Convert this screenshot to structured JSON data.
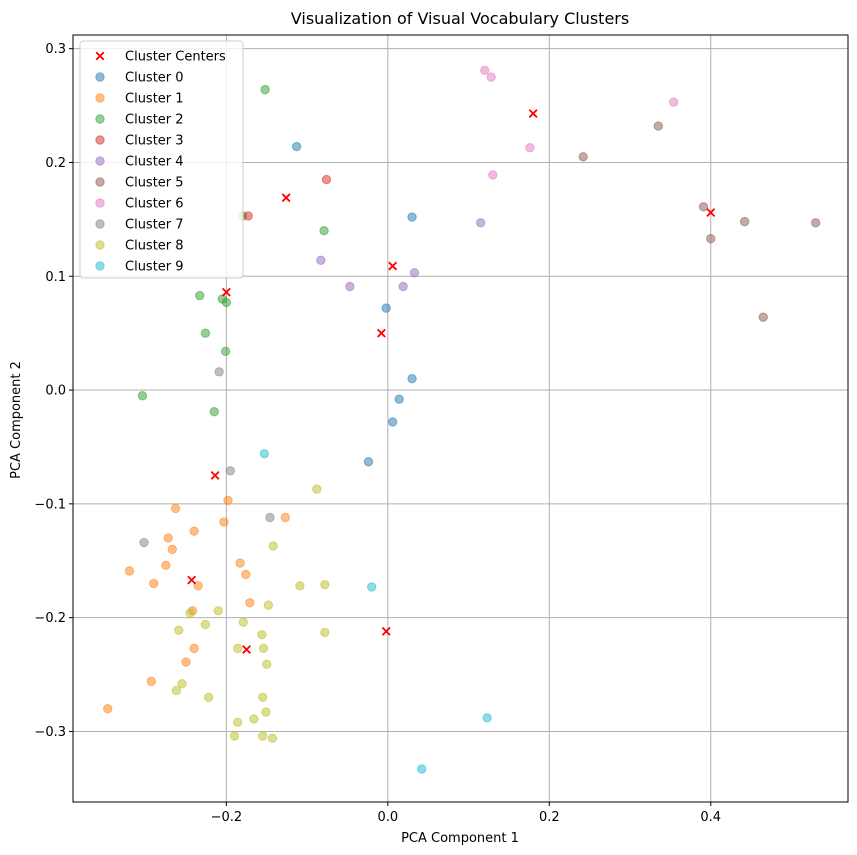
{
  "chart_data": {
    "type": "scatter",
    "title": "Visualization of Visual Vocabulary Clusters",
    "xlabel": "PCA Component 1",
    "ylabel": "PCA Component 2",
    "xlim": [
      -0.39,
      0.57
    ],
    "ylim": [
      -0.362,
      0.312
    ],
    "xticks": [
      -0.2,
      0.0,
      0.2,
      0.4
    ],
    "xtick_labels": [
      "−0.2",
      "0.0",
      "0.2",
      "0.4"
    ],
    "yticks": [
      -0.3,
      -0.2,
      -0.1,
      0.0,
      0.1,
      0.2,
      0.3
    ],
    "ytick_labels": [
      "−0.3",
      "−0.2",
      "−0.1",
      "0.0",
      "0.1",
      "0.2",
      "0.3"
    ],
    "grid": true,
    "legend_position": "upper-left",
    "centers": {
      "name": "Cluster Centers",
      "color": "#ff0000",
      "marker": "x",
      "points": [
        [
          -0.2,
          0.086
        ],
        [
          -0.126,
          0.169
        ],
        [
          0.006,
          0.109
        ],
        [
          -0.008,
          0.05
        ],
        [
          0.18,
          0.243
        ],
        [
          0.4,
          0.156
        ],
        [
          -0.214,
          -0.075
        ],
        [
          -0.243,
          -0.167
        ],
        [
          -0.175,
          -0.228
        ],
        [
          -0.002,
          -0.212
        ]
      ]
    },
    "series": [
      {
        "name": "Cluster 0",
        "color": "#1f77b4",
        "points": [
          [
            -0.113,
            0.214
          ],
          [
            0.03,
            0.152
          ],
          [
            -0.002,
            0.072
          ],
          [
            0.03,
            0.01
          ],
          [
            0.014,
            -0.008
          ],
          [
            0.006,
            -0.028
          ],
          [
            -0.024,
            -0.063
          ]
        ]
      },
      {
        "name": "Cluster 1",
        "color": "#ff7f0e",
        "points": [
          [
            -0.263,
            -0.104
          ],
          [
            -0.198,
            -0.097
          ],
          [
            -0.203,
            -0.116
          ],
          [
            -0.127,
            -0.112
          ],
          [
            -0.272,
            -0.13
          ],
          [
            -0.24,
            -0.124
          ],
          [
            -0.267,
            -0.14
          ],
          [
            -0.32,
            -0.159
          ],
          [
            -0.275,
            -0.154
          ],
          [
            -0.183,
            -0.152
          ],
          [
            -0.176,
            -0.162
          ],
          [
            -0.29,
            -0.17
          ],
          [
            -0.235,
            -0.172
          ],
          [
            -0.171,
            -0.187
          ],
          [
            -0.242,
            -0.194
          ],
          [
            -0.24,
            -0.227
          ],
          [
            -0.25,
            -0.239
          ],
          [
            -0.293,
            -0.256
          ],
          [
            -0.347,
            -0.28
          ]
        ]
      },
      {
        "name": "Cluster 2",
        "color": "#2ca02c",
        "points": [
          [
            -0.152,
            0.264
          ],
          [
            -0.18,
            0.153
          ],
          [
            -0.079,
            0.14
          ],
          [
            -0.233,
            0.083
          ],
          [
            -0.205,
            0.08
          ],
          [
            -0.2,
            0.077
          ],
          [
            -0.226,
            0.05
          ],
          [
            -0.201,
            0.034
          ],
          [
            -0.304,
            -0.005
          ],
          [
            -0.215,
            -0.019
          ]
        ]
      },
      {
        "name": "Cluster 3",
        "color": "#d62728",
        "points": [
          [
            -0.076,
            0.185
          ],
          [
            -0.173,
            0.153
          ]
        ]
      },
      {
        "name": "Cluster 4",
        "color": "#9467bd",
        "points": [
          [
            0.115,
            0.147
          ],
          [
            -0.083,
            0.114
          ],
          [
            0.033,
            0.103
          ],
          [
            -0.047,
            0.091
          ],
          [
            0.019,
            0.091
          ]
        ]
      },
      {
        "name": "Cluster 5",
        "color": "#8c564b",
        "points": [
          [
            0.335,
            0.232
          ],
          [
            0.242,
            0.205
          ],
          [
            0.391,
            0.161
          ],
          [
            0.442,
            0.148
          ],
          [
            0.53,
            0.147
          ],
          [
            0.4,
            0.133
          ],
          [
            0.465,
            0.064
          ]
        ]
      },
      {
        "name": "Cluster 6",
        "color": "#e377c2",
        "points": [
          [
            0.12,
            0.281
          ],
          [
            0.128,
            0.275
          ],
          [
            0.354,
            0.253
          ],
          [
            0.176,
            0.213
          ],
          [
            0.13,
            0.189
          ]
        ]
      },
      {
        "name": "Cluster 7",
        "color": "#7f7f7f",
        "points": [
          [
            -0.209,
            0.016
          ],
          [
            -0.195,
            -0.071
          ],
          [
            -0.146,
            -0.112
          ],
          [
            -0.302,
            -0.134
          ]
        ]
      },
      {
        "name": "Cluster 8",
        "color": "#bcbd22",
        "points": [
          [
            -0.088,
            -0.087
          ],
          [
            -0.142,
            -0.137
          ],
          [
            -0.109,
            -0.172
          ],
          [
            -0.078,
            -0.171
          ],
          [
            -0.148,
            -0.189
          ],
          [
            -0.245,
            -0.196
          ],
          [
            -0.21,
            -0.194
          ],
          [
            -0.259,
            -0.211
          ],
          [
            -0.226,
            -0.206
          ],
          [
            -0.179,
            -0.204
          ],
          [
            -0.156,
            -0.215
          ],
          [
            -0.078,
            -0.213
          ],
          [
            -0.186,
            -0.227
          ],
          [
            -0.154,
            -0.227
          ],
          [
            -0.15,
            -0.241
          ],
          [
            -0.255,
            -0.258
          ],
          [
            -0.262,
            -0.264
          ],
          [
            -0.222,
            -0.27
          ],
          [
            -0.155,
            -0.27
          ],
          [
            -0.151,
            -0.283
          ],
          [
            -0.166,
            -0.289
          ],
          [
            -0.186,
            -0.292
          ],
          [
            -0.19,
            -0.304
          ],
          [
            -0.155,
            -0.304
          ],
          [
            -0.143,
            -0.306
          ]
        ]
      },
      {
        "name": "Cluster 9",
        "color": "#17becf",
        "points": [
          [
            -0.153,
            -0.056
          ],
          [
            -0.02,
            -0.173
          ],
          [
            0.123,
            -0.288
          ],
          [
            0.042,
            -0.333
          ]
        ]
      }
    ]
  }
}
